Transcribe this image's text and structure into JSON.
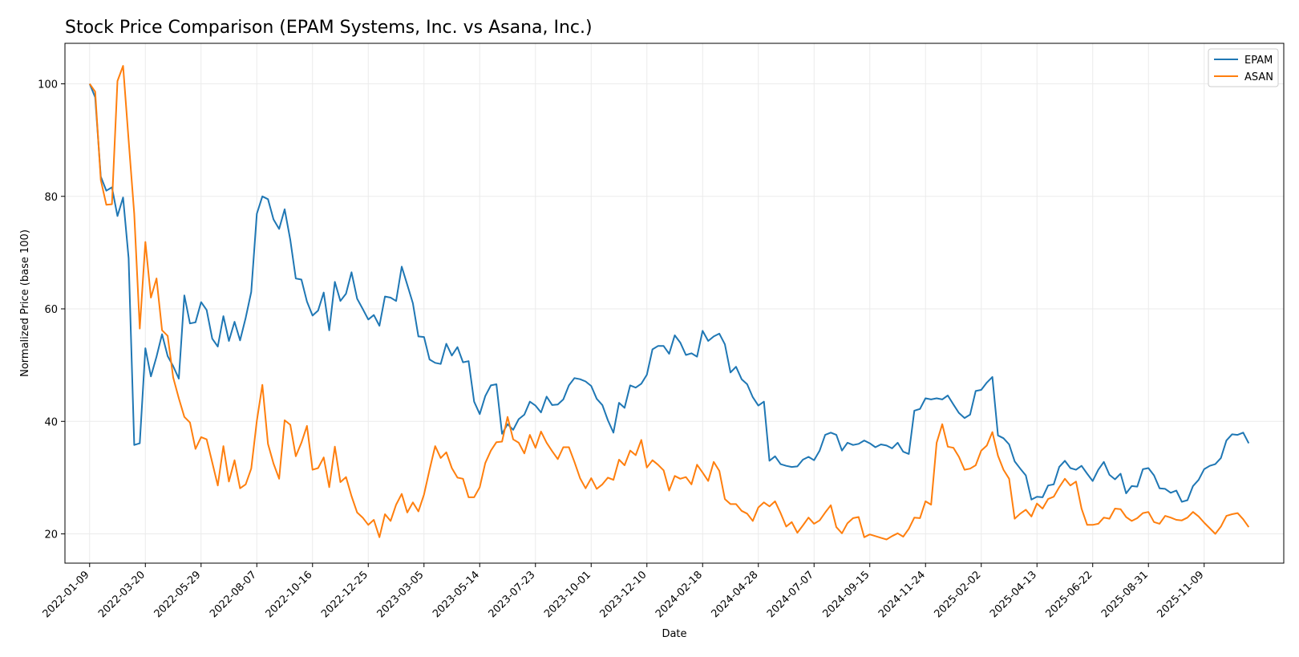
{
  "chart_data": {
    "type": "line",
    "title": "Stock Price Comparison (EPAM Systems, Inc. vs Asana, Inc.)",
    "xlabel": "Date",
    "ylabel": "Normalized Price (base 100)",
    "x_start": "2022-01-09",
    "x_step_days": 7,
    "x_range": [
      "2021-12-09",
      "2026-02-17"
    ],
    "ylim": [
      14.8,
      107.2
    ],
    "y_ticks": [
      20,
      40,
      60,
      80,
      100
    ],
    "x_ticks": [
      "2022-01-09",
      "2022-03-20",
      "2022-05-29",
      "2022-08-07",
      "2022-10-16",
      "2022-12-25",
      "2023-03-05",
      "2023-05-14",
      "2023-07-23",
      "2023-10-01",
      "2023-12-10",
      "2024-02-18",
      "2024-04-28",
      "2024-07-07",
      "2024-09-15",
      "2024-11-24",
      "2025-02-02",
      "2025-04-13",
      "2025-06-22",
      "2025-08-31",
      "2025-11-09"
    ],
    "grid": true,
    "legend_position": "top-right",
    "series": [
      {
        "name": "EPAM",
        "color": "#1f77b4",
        "values": [
          100,
          97.6,
          83.5,
          81,
          81.6,
          76.5,
          79.8,
          69,
          35.8,
          36.1,
          53,
          48,
          51.5,
          55.5,
          51.6,
          49.8,
          47.6,
          62.4,
          57.4,
          57.6,
          61.2,
          59.8,
          54.7,
          53.3,
          58.7,
          54.3,
          57.7,
          54.4,
          58.4,
          63,
          76.9,
          80,
          79.5,
          75.9,
          74.2,
          77.7,
          72.3,
          65.4,
          65.2,
          61.3,
          58.8,
          59.7,
          62.9,
          56.2,
          64.8,
          61.4,
          62.7,
          66.5,
          61.8,
          60,
          58.1,
          58.9,
          57,
          62.2,
          62,
          61.4,
          67.5,
          64.3,
          61,
          55.1,
          55,
          51,
          50.4,
          50.2,
          53.8,
          51.7,
          53.2,
          50.5,
          50.7,
          43.5,
          41.3,
          44.5,
          46.4,
          46.6,
          37.8,
          39.5,
          38.5,
          40.4,
          41.2,
          43.5,
          42.8,
          41.6,
          44.4,
          42.9,
          43,
          43.9,
          46.4,
          47.7,
          47.5,
          47.1,
          46.3,
          44,
          42.9,
          40.2,
          38,
          43.3,
          42.4,
          46.4,
          46,
          46.7,
          48.3,
          52.8,
          53.4,
          53.4,
          52,
          55.3,
          54,
          51.8,
          52.1,
          51.5,
          56.1,
          54.3,
          55.1,
          55.6,
          53.7,
          48.7,
          49.7,
          47.5,
          46.6,
          44.3,
          42.8,
          43.5,
          33,
          33.8,
          32.4,
          32.1,
          31.9,
          32,
          33.2,
          33.7,
          33.1,
          34.8,
          37.6,
          38,
          37.6,
          34.8,
          36.2,
          35.8,
          36,
          36.6,
          36.1,
          35.4,
          35.9,
          35.7,
          35.2,
          36.2,
          34.6,
          34.2,
          41.9,
          42.2,
          44.1,
          43.9,
          44.1,
          43.9,
          44.6,
          43,
          41.5,
          40.6,
          41.2,
          45.4,
          45.6,
          46.9,
          47.9,
          37.5,
          37,
          35.9,
          32.9,
          31.6,
          30.4,
          26.1,
          26.6,
          26.5,
          28.6,
          28.8,
          31.9,
          33,
          31.7,
          31.4,
          32.1,
          30.7,
          29.4,
          31.4,
          32.8,
          30.5,
          29.7,
          30.7,
          27.2,
          28.5,
          28.4,
          31.5,
          31.7,
          30.4,
          28.1,
          28,
          27.3,
          27.7,
          25.7,
          26,
          28.5,
          29.6,
          31.5,
          32.1,
          32.4,
          33.5,
          36.6,
          37.7,
          37.6,
          38,
          36.1
        ]
      },
      {
        "name": "ASAN",
        "color": "#ff7f0e",
        "values": [
          100,
          98.6,
          82.9,
          78.5,
          78.6,
          100.5,
          103.2,
          90,
          76.9,
          56.5,
          71.9,
          62,
          65.4,
          56.2,
          55.2,
          47.8,
          44.1,
          40.8,
          39.8,
          35.1,
          37.2,
          36.8,
          32.7,
          28.6,
          35.6,
          29.3,
          33.1,
          28.1,
          28.8,
          31.6,
          40.1,
          46.5,
          36,
          32.5,
          29.8,
          40.2,
          39.4,
          33.8,
          36.2,
          39.2,
          31.4,
          31.7,
          33.6,
          28.3,
          35.5,
          29.2,
          30.1,
          26.7,
          23.8,
          22.9,
          21.6,
          22.5,
          19.4,
          23.5,
          22.3,
          25.2,
          27.1,
          23.8,
          25.6,
          24,
          27,
          31.4,
          35.6,
          33.5,
          34.5,
          31.7,
          30,
          29.8,
          26.5,
          26.5,
          28.3,
          32.6,
          34.8,
          36.3,
          36.4,
          40.8,
          36.8,
          36.2,
          34.3,
          37.6,
          35.3,
          38.2,
          36.2,
          34.7,
          33.3,
          35.4,
          35.4,
          32.8,
          29.9,
          28.1,
          29.9,
          28,
          28.8,
          30,
          29.6,
          33.2,
          32.2,
          34.8,
          34,
          36.7,
          31.8,
          33.1,
          32.3,
          31.3,
          27.7,
          30.3,
          29.8,
          30.1,
          28.8,
          32.3,
          30.9,
          29.4,
          32.8,
          31.2,
          26.2,
          25.3,
          25.3,
          24.1,
          23.6,
          22.3,
          24.7,
          25.6,
          24.9,
          25.8,
          23.7,
          21.3,
          22.1,
          20.2,
          21.5,
          22.9,
          21.8,
          22.4,
          23.8,
          25.1,
          21.2,
          20.1,
          21.9,
          22.8,
          23,
          19.4,
          19.9,
          19.6,
          19.3,
          19,
          19.6,
          20.1,
          19.5,
          20.9,
          22.9,
          22.8,
          25.8,
          25.2,
          36.2,
          39.5,
          35.5,
          35.3,
          33.7,
          31.4,
          31.6,
          32.2,
          34.8,
          35.7,
          38.1,
          33.9,
          31.4,
          29.8,
          22.7,
          23.6,
          24.3,
          23.1,
          25.4,
          24.5,
          26.2,
          26.6,
          28.3,
          29.8,
          28.6,
          29.3,
          24.5,
          21.6,
          21.6,
          21.8,
          22.9,
          22.7,
          24.5,
          24.4,
          23,
          22.3,
          22.8,
          23.7,
          23.9,
          22.1,
          21.8,
          23.2,
          22.9,
          22.5,
          22.4,
          22.9,
          23.9,
          23.1,
          22,
          21,
          20,
          21.3,
          23.2,
          23.5,
          23.7,
          22.6,
          21.2
        ]
      }
    ]
  }
}
